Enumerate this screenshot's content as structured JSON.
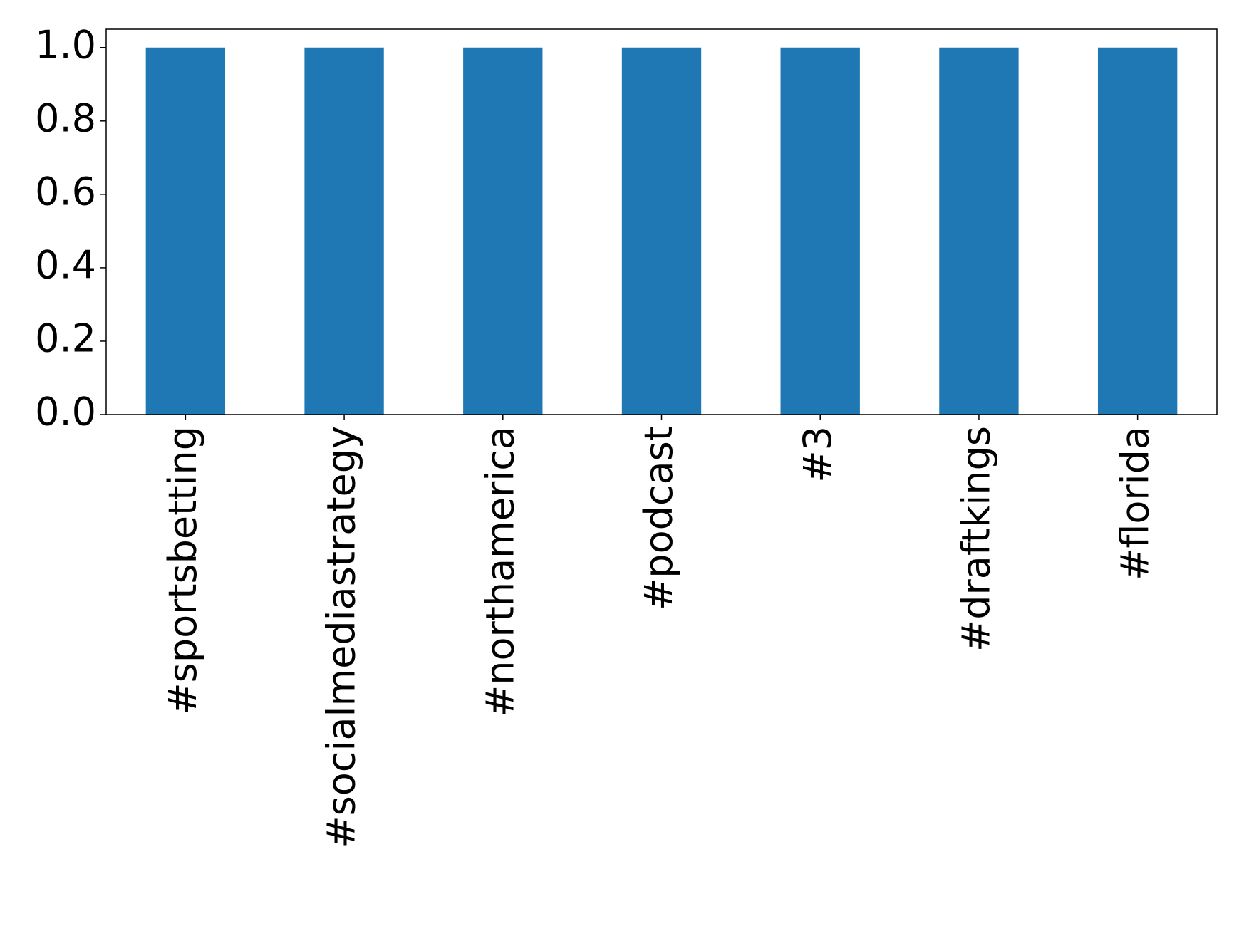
{
  "chart_data": {
    "type": "bar",
    "categories": [
      "#sportsbetting",
      "#socialmediastrategy",
      "#northamerica",
      "#podcast",
      "#3",
      "#draftkings",
      "#florida"
    ],
    "values": [
      1,
      1,
      1,
      1,
      1,
      1,
      1
    ],
    "color": "#1f77b4",
    "ylim": [
      0,
      1.05
    ],
    "yticks": [
      {
        "value": 0,
        "label": "0.0"
      },
      0.2,
      0.4,
      0.6,
      0.8,
      {
        "value": 1,
        "label": "1.0"
      }
    ],
    "grid": false
  }
}
